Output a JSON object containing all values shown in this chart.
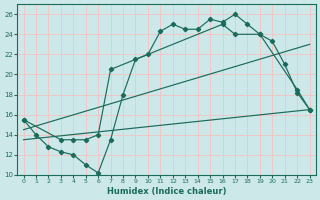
{
  "xlabel": "Humidex (Indice chaleur)",
  "background_color": "#cde8e8",
  "grid_color": "#f0c8c8",
  "line_color": "#1a6b5a",
  "xlim": [
    -0.5,
    23.5
  ],
  "ylim": [
    10,
    27
  ],
  "xticks": [
    0,
    1,
    2,
    3,
    4,
    5,
    6,
    7,
    8,
    9,
    10,
    11,
    12,
    13,
    14,
    15,
    16,
    17,
    18,
    19,
    20,
    21,
    22,
    23
  ],
  "yticks": [
    10,
    12,
    14,
    16,
    18,
    20,
    22,
    24,
    26
  ],
  "line1_x": [
    0,
    1,
    2,
    3,
    4,
    5,
    6,
    7,
    8,
    9,
    10,
    11,
    12,
    13,
    14,
    15,
    16,
    17,
    18,
    19,
    20,
    21,
    22,
    23
  ],
  "line1_y": [
    15.5,
    14.0,
    12.8,
    12.3,
    12.0,
    11.0,
    10.2,
    13.5,
    18.0,
    21.5,
    22.0,
    24.3,
    25.0,
    24.5,
    24.5,
    25.5,
    25.2,
    26.0,
    25.0,
    24.0,
    23.3,
    21.0,
    18.2,
    16.5
  ],
  "line2_x": [
    0,
    3,
    4,
    5,
    6,
    7,
    16,
    17,
    19,
    22,
    23
  ],
  "line2_y": [
    15.5,
    13.5,
    13.5,
    13.5,
    14.0,
    20.5,
    25.0,
    24.0,
    24.0,
    18.5,
    16.5
  ],
  "line3_x": [
    0,
    23
  ],
  "line3_y": [
    13.5,
    16.5
  ],
  "line4_x": [
    0,
    23
  ],
  "line4_y": [
    14.5,
    23.0
  ]
}
